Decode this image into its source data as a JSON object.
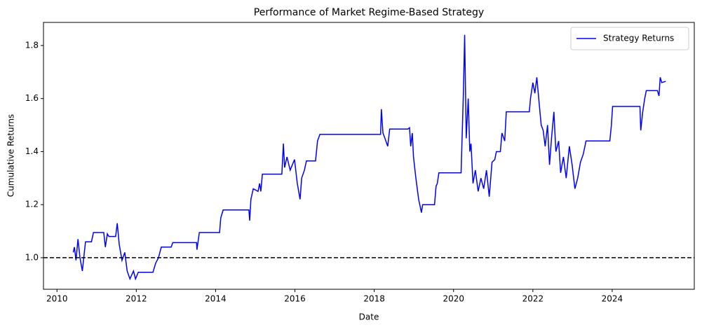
{
  "chart_data": {
    "type": "line",
    "title": "Performance of Market Regime-Based Strategy",
    "x_label": "Date",
    "y_label": "Cumulative Returns",
    "x": [
      2010.41,
      2010.44,
      2010.48,
      2010.53,
      2010.58,
      2010.64,
      2010.69,
      2010.72,
      2010.87,
      2010.92,
      2011.18,
      2011.22,
      2011.27,
      2011.31,
      2011.48,
      2011.52,
      2011.57,
      2011.64,
      2011.71,
      2011.77,
      2011.84,
      2011.93,
      2011.98,
      2012.05,
      2012.42,
      2012.49,
      2012.56,
      2012.63,
      2012.88,
      2012.92,
      2013.52,
      2013.53,
      2013.59,
      2014.1,
      2014.13,
      2014.19,
      2014.84,
      2014.86,
      2014.89,
      2014.95,
      2015.07,
      2015.11,
      2015.14,
      2015.18,
      2015.67,
      2015.71,
      2015.74,
      2015.8,
      2015.88,
      2015.99,
      2016.06,
      2016.13,
      2016.17,
      2016.24,
      2016.29,
      2016.52,
      2016.57,
      2016.63,
      2018.16,
      2018.18,
      2018.22,
      2018.27,
      2018.34,
      2018.39,
      2018.85,
      2018.89,
      2018.92,
      2018.96,
      2018.99,
      2019.05,
      2019.12,
      2019.19,
      2019.22,
      2019.52,
      2019.56,
      2019.59,
      2019.63,
      2020.19,
      2020.25,
      2020.28,
      2020.32,
      2020.37,
      2020.41,
      2020.44,
      2020.49,
      2020.55,
      2020.62,
      2020.69,
      2020.76,
      2020.83,
      2020.9,
      2020.97,
      2021.04,
      2021.08,
      2021.18,
      2021.22,
      2021.29,
      2021.33,
      2021.91,
      2021.94,
      2022.0,
      2022.05,
      2022.1,
      2022.16,
      2022.21,
      2022.26,
      2022.31,
      2022.37,
      2022.42,
      2022.47,
      2022.53,
      2022.58,
      2022.65,
      2022.7,
      2022.77,
      2022.84,
      2022.92,
      2022.99,
      2023.06,
      2023.13,
      2023.2,
      2023.27,
      2023.34,
      2023.94,
      2023.98,
      2024.01,
      2024.7,
      2024.72,
      2024.77,
      2024.82,
      2024.86,
      2025.14,
      2025.18,
      2025.21,
      2025.25,
      2025.35
    ],
    "series": [
      {
        "name": "Strategy Returns",
        "color": "#0000ff",
        "values": [
          1.02,
          1.04,
          0.99,
          1.07,
          1.0,
          0.95,
          1.02,
          1.06,
          1.06,
          1.095,
          1.095,
          1.04,
          1.09,
          1.08,
          1.08,
          1.13,
          1.05,
          0.99,
          1.02,
          0.95,
          0.92,
          0.95,
          0.92,
          0.945,
          0.945,
          0.98,
          1.0,
          1.04,
          1.04,
          1.057,
          1.057,
          1.03,
          1.095,
          1.095,
          1.15,
          1.18,
          1.18,
          1.14,
          1.22,
          1.26,
          1.25,
          1.28,
          1.25,
          1.315,
          1.315,
          1.43,
          1.34,
          1.38,
          1.33,
          1.37,
          1.28,
          1.22,
          1.3,
          1.33,
          1.365,
          1.365,
          1.44,
          1.465,
          1.465,
          1.56,
          1.47,
          1.45,
          1.42,
          1.485,
          1.485,
          1.49,
          1.42,
          1.47,
          1.38,
          1.3,
          1.22,
          1.17,
          1.2,
          1.2,
          1.27,
          1.28,
          1.32,
          1.32,
          1.63,
          1.84,
          1.45,
          1.6,
          1.4,
          1.43,
          1.28,
          1.33,
          1.25,
          1.3,
          1.26,
          1.33,
          1.23,
          1.36,
          1.37,
          1.4,
          1.4,
          1.47,
          1.44,
          1.55,
          1.55,
          1.6,
          1.66,
          1.62,
          1.68,
          1.58,
          1.5,
          1.48,
          1.42,
          1.5,
          1.35,
          1.45,
          1.55,
          1.4,
          1.44,
          1.32,
          1.38,
          1.3,
          1.42,
          1.35,
          1.26,
          1.3,
          1.36,
          1.39,
          1.44,
          1.44,
          1.5,
          1.57,
          1.57,
          1.48,
          1.55,
          1.6,
          1.63,
          1.63,
          1.61,
          1.68,
          1.66,
          1.665
        ]
      }
    ],
    "hline": {
      "value": 1,
      "color": "#000000",
      "style": "dashed"
    },
    "xlim": [
      2009.66,
      2026.07
    ],
    "xticks": [
      2010,
      2012,
      2014,
      2016,
      2018,
      2020,
      2022,
      2024
    ],
    "ylim": [
      0.881,
      1.887
    ],
    "yticks": [
      {
        "value": 1,
        "label": "1.0"
      },
      1.2,
      1.4,
      1.6,
      1.8
    ],
    "legend": "upper right",
    "grid": false
  }
}
